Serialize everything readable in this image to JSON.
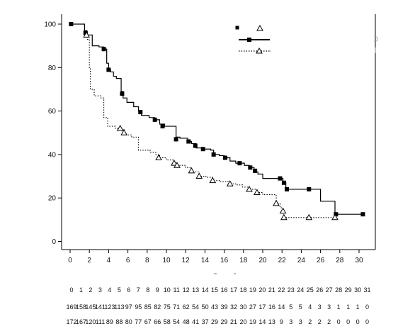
{
  "chart_data": {
    "type": "line",
    "title": "",
    "xlabel": "",
    "ylabel": "",
    "xlim": [
      -1,
      32
    ],
    "ylim": [
      -3,
      106
    ],
    "x_ticks": [
      0,
      2,
      4,
      6,
      8,
      10,
      12,
      14,
      16,
      18,
      20,
      22,
      24,
      26,
      28,
      30
    ],
    "y_ticks": [
      0,
      20,
      40,
      60,
      80,
      100
    ],
    "grid": false,
    "legend": {
      "placement": "top-right",
      "entries": [
        "",
        ""
      ]
    },
    "series": [
      {
        "style": "solid",
        "marker": "square",
        "color": "#000000",
        "points": [
          [
            0,
            100
          ],
          [
            1.1,
            100
          ],
          [
            1.5,
            97
          ],
          [
            1.7,
            95
          ],
          [
            2.3,
            90
          ],
          [
            3.0,
            89.5
          ],
          [
            3.5,
            88.5
          ],
          [
            3.8,
            82
          ],
          [
            4.0,
            79
          ],
          [
            4.2,
            78
          ],
          [
            4.5,
            76
          ],
          [
            4.8,
            75
          ],
          [
            5.3,
            69
          ],
          [
            5.5,
            66
          ],
          [
            5.9,
            64
          ],
          [
            6.6,
            62
          ],
          [
            7.1,
            60
          ],
          [
            7.4,
            58
          ],
          [
            8.2,
            57
          ],
          [
            8.8,
            56
          ],
          [
            9.3,
            54
          ],
          [
            9.8,
            53
          ],
          [
            11.0,
            48
          ],
          [
            11.4,
            47.5
          ],
          [
            12.2,
            46
          ],
          [
            12.6,
            45
          ],
          [
            13.1,
            43
          ],
          [
            13.9,
            42.5
          ],
          [
            14.6,
            42
          ],
          [
            14.9,
            40
          ],
          [
            15.5,
            39.5
          ],
          [
            16.0,
            38.5
          ],
          [
            16.6,
            37
          ],
          [
            17.2,
            36
          ],
          [
            18.1,
            35
          ],
          [
            18.6,
            34
          ],
          [
            19.1,
            32
          ],
          [
            19.5,
            31
          ],
          [
            20.0,
            29
          ],
          [
            21.9,
            29
          ],
          [
            22.1,
            27
          ],
          [
            22.4,
            24
          ],
          [
            24.8,
            24
          ],
          [
            26.0,
            18.5
          ],
          [
            27.5,
            12.5
          ],
          [
            30.5,
            12.5
          ]
        ],
        "censored": [
          [
            0.1,
            100
          ],
          [
            1.6,
            96
          ],
          [
            3.5,
            88.5
          ],
          [
            4.0,
            79
          ],
          [
            5.4,
            68
          ],
          [
            7.3,
            59.5
          ],
          [
            8.8,
            56
          ],
          [
            9.6,
            53
          ],
          [
            11.0,
            47
          ],
          [
            12.3,
            46
          ],
          [
            13.0,
            44
          ],
          [
            13.8,
            42.5
          ],
          [
            14.9,
            40
          ],
          [
            16.1,
            38.5
          ],
          [
            17.6,
            36
          ],
          [
            18.7,
            34
          ],
          [
            19.2,
            32.5
          ],
          [
            21.8,
            29
          ],
          [
            22.2,
            27
          ],
          [
            22.5,
            24
          ],
          [
            24.8,
            24
          ],
          [
            27.6,
            12.5
          ],
          [
            30.4,
            12.5
          ]
        ]
      },
      {
        "style": "dotted",
        "marker": "triangle",
        "color": "#000000",
        "points": [
          [
            0,
            100
          ],
          [
            1.5,
            97
          ],
          [
            1.8,
            93
          ],
          [
            2.0,
            80
          ],
          [
            2.1,
            70
          ],
          [
            2.5,
            67
          ],
          [
            3.2,
            66
          ],
          [
            3.5,
            57
          ],
          [
            3.9,
            53
          ],
          [
            4.7,
            52
          ],
          [
            5.2,
            51.5
          ],
          [
            5.6,
            49
          ],
          [
            6.4,
            48
          ],
          [
            7.1,
            42
          ],
          [
            8.3,
            41
          ],
          [
            8.9,
            40
          ],
          [
            9.3,
            38.5
          ],
          [
            10.0,
            37.5
          ],
          [
            10.8,
            36
          ],
          [
            11.2,
            35
          ],
          [
            12.0,
            34
          ],
          [
            12.6,
            32
          ],
          [
            13.4,
            30
          ],
          [
            14.1,
            29.5
          ],
          [
            14.8,
            28
          ],
          [
            15.6,
            27.5
          ],
          [
            16.4,
            26.5
          ],
          [
            17.2,
            26
          ],
          [
            17.9,
            25
          ],
          [
            18.6,
            24
          ],
          [
            19.4,
            22.5
          ],
          [
            20.0,
            21.5
          ],
          [
            21.4,
            17.5
          ],
          [
            21.8,
            15.5
          ],
          [
            22.1,
            13
          ],
          [
            22.2,
            11
          ],
          [
            27.5,
            11
          ]
        ],
        "censored": [
          [
            1.7,
            95
          ],
          [
            5.2,
            52
          ],
          [
            5.6,
            50
          ],
          [
            9.2,
            38.5
          ],
          [
            10.8,
            36
          ],
          [
            11.1,
            35
          ],
          [
            12.6,
            32.5
          ],
          [
            13.4,
            30
          ],
          [
            14.8,
            28
          ],
          [
            16.6,
            26.5
          ],
          [
            18.6,
            24
          ],
          [
            19.4,
            22.5
          ],
          [
            21.4,
            17.5
          ],
          [
            22.1,
            14
          ],
          [
            22.2,
            11
          ],
          [
            24.8,
            11
          ],
          [
            27.5,
            11
          ]
        ]
      }
    ]
  },
  "risk_table": {
    "times": [
      "0",
      "1",
      "2",
      "3",
      "4",
      "5",
      "6",
      "7",
      "8",
      "9",
      "10",
      "11",
      "12",
      "13",
      "14",
      "15",
      "16",
      "17",
      "18",
      "19",
      "20",
      "21",
      "22",
      "23",
      "24",
      "25",
      "26",
      "27",
      "28",
      "29",
      "30",
      "31"
    ],
    "rows": [
      [
        "169",
        "158",
        "145",
        "141",
        "123",
        "113",
        "97",
        "95",
        "85",
        "82",
        "75",
        "71",
        "62",
        "54",
        "50",
        "43",
        "39",
        "32",
        "30",
        "27",
        "17",
        "16",
        "14",
        "5",
        "5",
        "4",
        "3",
        "3",
        "1",
        "1",
        "1",
        "0"
      ],
      [
        "172",
        "167",
        "120",
        "111",
        "89",
        "88",
        "80",
        "77",
        "67",
        "66",
        "58",
        "54",
        "48",
        "41",
        "37",
        "29",
        "29",
        "21",
        "20",
        "19",
        "14",
        "13",
        "9",
        "3",
        "3",
        "2",
        "2",
        "2",
        "0",
        "0",
        "0",
        "0"
      ]
    ]
  }
}
